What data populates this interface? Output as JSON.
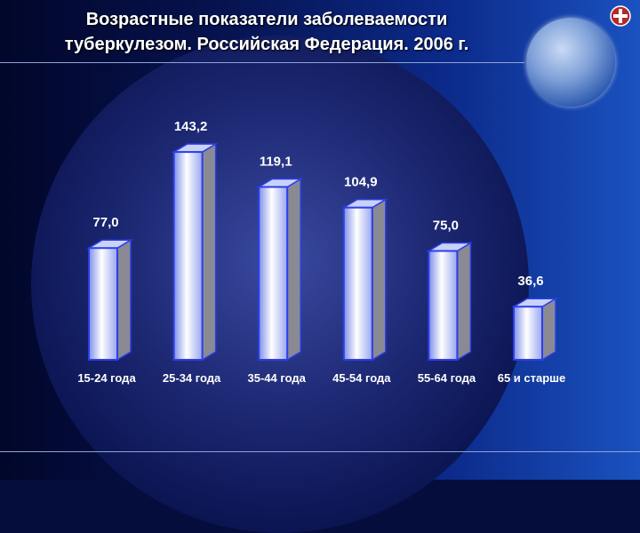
{
  "slide": {
    "title_line1": "Возрастные показатели заболеваемости",
    "title_line2": "туберкулезом. Российская Федерация. 2006 г."
  },
  "colors": {
    "bar_front": "#ffffff",
    "bar_mid": "#a9b6f0",
    "bar_edge": "#2d3ee8",
    "bar_side": "#8a8a94"
  },
  "icons": [
    "globe-photo-icon",
    "logo-icon"
  ],
  "chart_data": {
    "type": "bar",
    "categories": [
      "15-24 года",
      "25-34 года",
      "35-44 года",
      "45-54 года",
      "55-64 года",
      "65 и старше"
    ],
    "values": [
      77.0,
      143.2,
      119.1,
      104.9,
      75.0,
      36.6
    ],
    "value_labels": [
      "77,0",
      "143,2",
      "119,1",
      "104,9",
      "75,0",
      "36,6"
    ],
    "ylim": [
      0,
      150
    ],
    "grid": false,
    "legend": false
  }
}
